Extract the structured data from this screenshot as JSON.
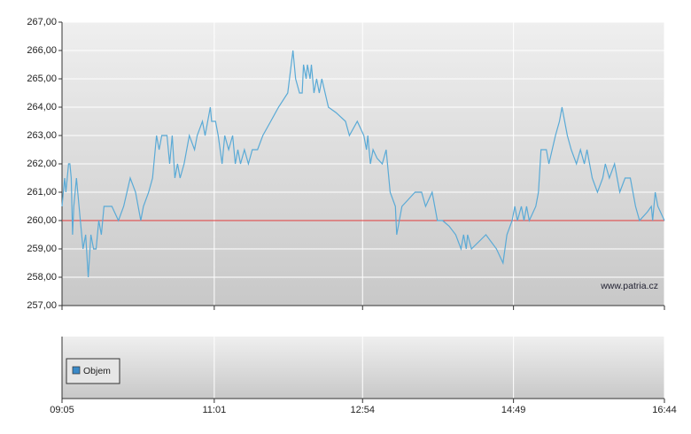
{
  "chart_data": {
    "type": "line",
    "x": [
      "09:05",
      "09:07",
      "09:08",
      "09:10",
      "09:11",
      "09:12",
      "09:13",
      "09:14",
      "09:16",
      "09:19",
      "09:21",
      "09:23",
      "09:25",
      "09:27",
      "09:29",
      "09:31",
      "09:33",
      "09:35",
      "09:37",
      "09:43",
      "09:48",
      "09:52",
      "09:57",
      "10:01",
      "10:05",
      "10:07",
      "10:11",
      "10:14",
      "10:17",
      "10:19",
      "10:21",
      "10:25",
      "10:27",
      "10:29",
      "10:31",
      "10:33",
      "10:35",
      "10:38",
      "10:42",
      "10:46",
      "10:48",
      "10:52",
      "10:54",
      "10:58",
      "10:59",
      "11:02",
      "11:04",
      "11:07",
      "11:09",
      "11:12",
      "11:15",
      "11:17",
      "11:19",
      "11:21",
      "11:24",
      "11:27",
      "11:30",
      "11:34",
      "11:38",
      "11:44",
      "11:50",
      "11:57",
      "12:01",
      "12:03",
      "12:06",
      "12:08",
      "12:09",
      "12:11",
      "12:12",
      "12:14",
      "12:15",
      "12:17",
      "12:19",
      "12:21",
      "12:23",
      "12:28",
      "12:34",
      "12:41",
      "12:44",
      "12:50",
      "12:55",
      "12:57",
      "12:58",
      "13:00",
      "13:02",
      "13:05",
      "13:09",
      "13:12",
      "13:15",
      "13:19",
      "13:20",
      "13:24",
      "13:28",
      "13:34",
      "13:39",
      "13:42",
      "13:47",
      "13:51",
      "13:55",
      "14:00",
      "14:05",
      "14:09",
      "14:11",
      "14:13",
      "14:14",
      "14:17",
      "14:28",
      "14:36",
      "14:41",
      "14:44",
      "14:48",
      "14:50",
      "14:52",
      "14:55",
      "14:57",
      "14:59",
      "15:01",
      "15:03",
      "15:06",
      "15:08",
      "15:10",
      "15:14",
      "15:16",
      "15:21",
      "15:24",
      "15:26",
      "15:30",
      "15:33",
      "15:37",
      "15:40",
      "15:43",
      "15:45",
      "15:49",
      "15:53",
      "15:57",
      "15:59",
      "16:02",
      "16:06",
      "16:10",
      "16:14",
      "16:18",
      "16:22",
      "16:25",
      "16:31",
      "16:34",
      "16:35",
      "16:37",
      "16:39",
      "16:44"
    ],
    "series": [
      {
        "color": "#5aaad6",
        "values": [
          260.5,
          261.5,
          261,
          262,
          262,
          261.5,
          259.5,
          260.5,
          261.5,
          260,
          259,
          259.5,
          258,
          259.5,
          259,
          259,
          260,
          259.5,
          260.5,
          260.5,
          260,
          260.5,
          261.5,
          261,
          260,
          260.5,
          261,
          261.5,
          263,
          262.5,
          263,
          263,
          262,
          263,
          261.5,
          262,
          261.5,
          262,
          263,
          262.5,
          263,
          263.5,
          263,
          264,
          263.5,
          263.5,
          263,
          262,
          263,
          262.5,
          263,
          262,
          262.5,
          262,
          262.5,
          262,
          262.5,
          262.5,
          263,
          263.5,
          264,
          264.5,
          266,
          265,
          264.5,
          264.5,
          265.5,
          265,
          265.5,
          265,
          265.5,
          264.5,
          265,
          264.5,
          265,
          264,
          263.8,
          263.5,
          263,
          263.5,
          263,
          262.5,
          263,
          262,
          262.5,
          262.2,
          262,
          262.5,
          261,
          260.5,
          259.5,
          260.5,
          260.7,
          261,
          261,
          260.5,
          261,
          260,
          260,
          259.8,
          259.5,
          259,
          259.5,
          259,
          259.5,
          259,
          259.5,
          259,
          258.5,
          259.5,
          260,
          260.5,
          260,
          260.5,
          260,
          260.5,
          260,
          260.2,
          260.5,
          261,
          262.5,
          262.5,
          262,
          263,
          263.5,
          264,
          263,
          262.5,
          262,
          262.5,
          262,
          262.5,
          261.5,
          261,
          261.5,
          262,
          261.5,
          262,
          261,
          261.5,
          261.5,
          260.5,
          260,
          260.3,
          260.5,
          260,
          261,
          260.5,
          260
        ]
      }
    ],
    "reference_line": {
      "value": 260,
      "color": "#e03a3a"
    },
    "xlim": [
      "09:05",
      "16:44"
    ],
    "xticks": [
      "09:05",
      "11:01",
      "12:54",
      "14:49",
      "16:44"
    ],
    "ylim": [
      257,
      267
    ],
    "yticks": [
      {
        "value": 257,
        "label": "257,00"
      },
      {
        "value": 258,
        "label": "258,00"
      },
      {
        "value": 259,
        "label": "259,00"
      },
      {
        "value": 260,
        "label": "260,00"
      },
      {
        "value": 261,
        "label": "261,00"
      },
      {
        "value": 262,
        "label": "262,00"
      },
      {
        "value": 263,
        "label": "263,00"
      },
      {
        "value": 264,
        "label": "264,00"
      },
      {
        "value": 265,
        "label": "265,00"
      },
      {
        "value": 266,
        "label": "266,00"
      },
      {
        "value": 267,
        "label": "267,00"
      }
    ],
    "grid": true,
    "watermark": "www.patria.cz",
    "volume_legend": {
      "name": "Objem",
      "color": "#3a8ac8"
    }
  }
}
